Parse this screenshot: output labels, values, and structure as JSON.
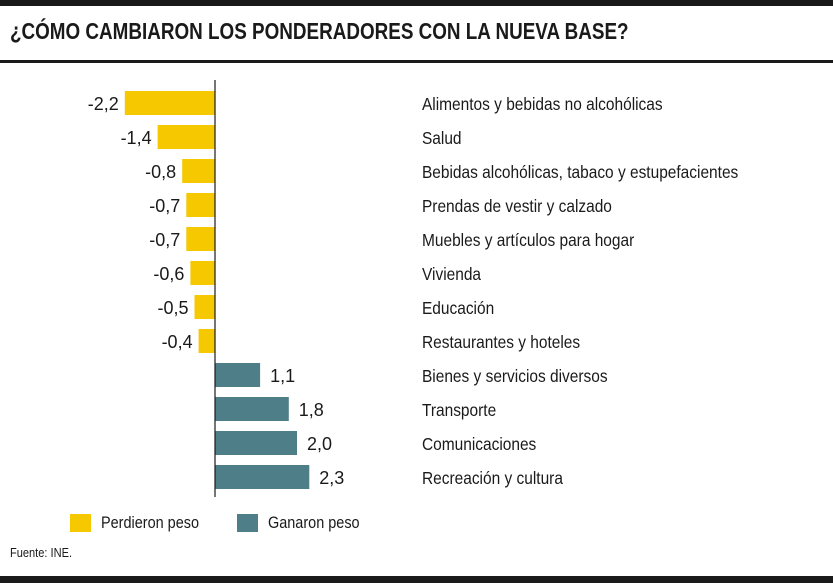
{
  "header": {
    "title": "¿CÓMO CAMBIARON LOS PONDERADORES CON LA NUEVA BASE?"
  },
  "legend": {
    "lost_label": "Perdieron peso",
    "gained_label": "Ganaron peso"
  },
  "footer": {
    "source": "Fuente: INE."
  },
  "colors": {
    "lost": "#f5c800",
    "gained": "#4e7f89",
    "axis": "#1a1a1a"
  },
  "chart_data": {
    "type": "bar",
    "orientation": "horizontal",
    "title": "¿CÓMO CAMBIARON LOS PONDERADORES CON LA NUEVA BASE?",
    "categories": [
      "Alimentos y bebidas no alcohólicas",
      "Salud",
      "Bebidas alcohólicas, tabaco y estupefacientes",
      "Prendas de vestir y calzado",
      "Muebles y artículos para hogar",
      "Vivienda",
      "Educación",
      "Restaurantes y hoteles",
      "Bienes y servicios diversos",
      "Transporte",
      "Comunicaciones",
      "Recreación y cultura"
    ],
    "values": [
      -2.2,
      -1.4,
      -0.8,
      -0.7,
      -0.7,
      -0.6,
      -0.5,
      -0.4,
      1.1,
      1.8,
      2.0,
      2.3
    ],
    "value_labels": [
      "-2,2",
      "-1,4",
      "-0,8",
      "-0,7",
      "-0,7",
      "-0,6",
      "-0,5",
      "-0,4",
      "1,1",
      "1,8",
      "2,0",
      "2,3"
    ],
    "xlim": [
      -2.2,
      2.3
    ],
    "legend": [
      "Perdieron peso",
      "Ganaron peso"
    ],
    "legend_position": "bottom-left",
    "grid": false
  }
}
